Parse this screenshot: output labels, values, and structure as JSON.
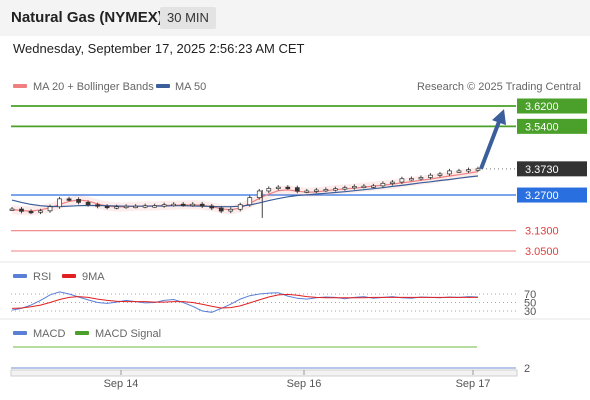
{
  "header": {
    "title": "Natural Gas (NYMEX)",
    "timeframe": "30 MIN"
  },
  "datetime": "Wednesday, September 17, 2025 2:56:23 AM CET",
  "watermark": "Research © 2025 Trading Central",
  "legend": {
    "main": [
      {
        "label": "MA 20 + Bollinger Bands",
        "color": "#f08080"
      },
      {
        "label": "MA 50",
        "color": "#3a5f9a"
      }
    ],
    "rsi": [
      {
        "label": "RSI",
        "color": "#5a7fd6"
      },
      {
        "label": "9MA",
        "color": "#e02020"
      }
    ],
    "macd": [
      {
        "label": "MACD",
        "color": "#5a7fd6"
      },
      {
        "label": "MACD Signal",
        "color": "#4aa02a"
      }
    ]
  },
  "chart_data": {
    "type": "line",
    "title": "Natural Gas (NYMEX) 30 MIN",
    "x_ticks": [
      "Sep 14",
      "Sep 16",
      "Sep 17"
    ],
    "price_labels": [
      {
        "value": 3.62,
        "text": "3.6200",
        "kind": "resistance",
        "color": "#4aa02a"
      },
      {
        "value": 3.54,
        "text": "3.5400",
        "kind": "resistance",
        "color": "#4aa02a"
      },
      {
        "value": 3.373,
        "text": "3.3730",
        "kind": "last",
        "color": "#333333"
      },
      {
        "value": 3.27,
        "text": "3.2700",
        "kind": "pivot",
        "color": "#2a6fe0"
      },
      {
        "value": 3.13,
        "text": "3.1300",
        "kind": "support",
        "color": "#f08080"
      },
      {
        "value": 3.05,
        "text": "3.0500",
        "kind": "support",
        "color": "#f08080"
      }
    ],
    "series": [
      {
        "name": "MA 20 + Bollinger Bands",
        "values": [
          3.213,
          3.209,
          3.207,
          3.212,
          3.22,
          3.233,
          3.245,
          3.251,
          3.246,
          3.235,
          3.227,
          3.223,
          3.224,
          3.226,
          3.227,
          3.227,
          3.229,
          3.23,
          3.231,
          3.232,
          3.23,
          3.224,
          3.216,
          3.212,
          3.219,
          3.237,
          3.257,
          3.274,
          3.287,
          3.29,
          3.285,
          3.281,
          3.282,
          3.287,
          3.291,
          3.294,
          3.297,
          3.301,
          3.305,
          3.309,
          3.313,
          3.318,
          3.323,
          3.328,
          3.333,
          3.339,
          3.345,
          3.35,
          3.356,
          3.362
        ]
      },
      {
        "name": "MA 50",
        "values": [
          3.25,
          3.241,
          3.233,
          3.228,
          3.225,
          3.225,
          3.226,
          3.228,
          3.229,
          3.229,
          3.228,
          3.227,
          3.226,
          3.226,
          3.226,
          3.227,
          3.227,
          3.228,
          3.228,
          3.227,
          3.226,
          3.225,
          3.224,
          3.224,
          3.226,
          3.231,
          3.239,
          3.248,
          3.256,
          3.263,
          3.268,
          3.271,
          3.274,
          3.277,
          3.28,
          3.283,
          3.287,
          3.291,
          3.295,
          3.299,
          3.304,
          3.308,
          3.313,
          3.318,
          3.322,
          3.327,
          3.331,
          3.336,
          3.341,
          3.345
        ]
      },
      {
        "name": "Price",
        "values": [
          3.215,
          3.206,
          3.203,
          3.208,
          3.224,
          3.255,
          3.253,
          3.241,
          3.232,
          3.226,
          3.222,
          3.224,
          3.226,
          3.226,
          3.228,
          3.228,
          3.232,
          3.234,
          3.232,
          3.234,
          3.227,
          3.219,
          3.207,
          3.214,
          3.232,
          3.26,
          3.286,
          3.296,
          3.301,
          3.299,
          3.285,
          3.286,
          3.29,
          3.292,
          3.295,
          3.299,
          3.304,
          3.305,
          3.306,
          3.316,
          3.321,
          3.334,
          3.335,
          3.339,
          3.348,
          3.353,
          3.365,
          3.365,
          3.37,
          3.373
        ]
      },
      {
        "name": "RSI",
        "values": [
          32,
          36,
          44,
          55,
          68,
          75,
          70,
          63,
          56,
          50,
          48,
          51,
          55,
          52,
          49,
          50,
          55,
          57,
          50,
          41,
          30,
          27,
          36,
          46,
          58,
          66,
          70,
          72,
          73,
          65,
          60,
          58,
          61,
          63,
          62,
          59,
          62,
          64,
          60,
          62,
          64,
          61,
          60,
          63,
          62,
          61,
          63,
          62,
          64,
          63
        ]
      },
      {
        "name": "9MA",
        "values": [
          36,
          37,
          40,
          44,
          50,
          57,
          62,
          64,
          62,
          58,
          55,
          53,
          52,
          52,
          52,
          51,
          51,
          52,
          52,
          50,
          46,
          41,
          37,
          38,
          42,
          49,
          56,
          63,
          68,
          69,
          67,
          64,
          62,
          61,
          61,
          61,
          61,
          61,
          62,
          62,
          62,
          62,
          62,
          62,
          62,
          62,
          62,
          62,
          62,
          62
        ]
      }
    ],
    "rsi_levels": [
      {
        "value": 70,
        "text": "70"
      },
      {
        "value": 50,
        "text": "50"
      },
      {
        "value": 30,
        "text": "30"
      }
    ],
    "macd_label": "2"
  }
}
